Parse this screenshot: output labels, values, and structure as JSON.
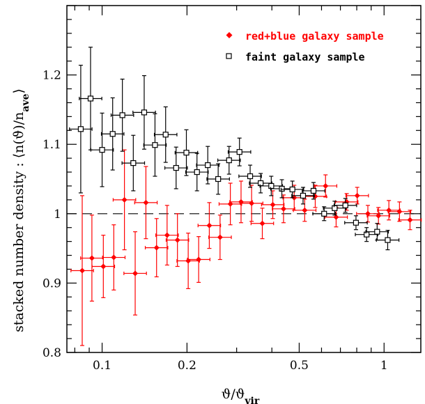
{
  "chart_data": {
    "type": "scatter",
    "xscale": "log",
    "xlim": [
      0.075,
      1.35
    ],
    "ylim": [
      0.8,
      1.3
    ],
    "grid": false,
    "legend_position": "top-right",
    "xlabel": "ϑ/ϑ",
    "xlabel_sub": "vir",
    "ylabel": "stacked number density : ⟨n(ϑ)/n",
    "ylabel_sub": "ave",
    "ylabel_end": "⟩",
    "xticks": [
      0.1,
      0.2,
      0.5,
      1
    ],
    "xtick_labels": [
      "0.1",
      "0.2",
      "0.5",
      "1"
    ],
    "yticks": [
      0.8,
      0.9,
      1.0,
      1.1,
      1.2
    ],
    "ytick_labels": [
      "0.8",
      "0.9",
      "1",
      "1.1",
      "1.2"
    ],
    "reference_line": 1.0,
    "series": [
      {
        "name": "red+blue galaxy sample",
        "color": "#ff0000",
        "marker": "filled-diamond",
        "points": [
          {
            "x": 0.085,
            "y": 0.918,
            "err": 0.108
          },
          {
            "x": 0.092,
            "y": 0.936,
            "err": 0.062
          },
          {
            "x": 0.101,
            "y": 0.924,
            "err": 0.045
          },
          {
            "x": 0.11,
            "y": 0.937,
            "err": 0.047
          },
          {
            "x": 0.12,
            "y": 1.02,
            "err": 0.072
          },
          {
            "x": 0.131,
            "y": 0.914,
            "err": 0.06
          },
          {
            "x": 0.143,
            "y": 1.016,
            "err": 0.052
          },
          {
            "x": 0.156,
            "y": 0.951,
            "err": 0.042
          },
          {
            "x": 0.17,
            "y": 0.969,
            "err": 0.043
          },
          {
            "x": 0.185,
            "y": 0.962,
            "err": 0.038
          },
          {
            "x": 0.202,
            "y": 0.932,
            "err": 0.04
          },
          {
            "x": 0.22,
            "y": 0.934,
            "err": 0.033
          },
          {
            "x": 0.24,
            "y": 0.983,
            "err": 0.033
          },
          {
            "x": 0.262,
            "y": 0.966,
            "err": 0.032
          },
          {
            "x": 0.285,
            "y": 1.014,
            "err": 0.03
          },
          {
            "x": 0.311,
            "y": 1.017,
            "err": 0.03
          },
          {
            "x": 0.339,
            "y": 1.015,
            "err": 0.026
          },
          {
            "x": 0.37,
            "y": 0.986,
            "err": 0.022
          },
          {
            "x": 0.403,
            "y": 1.013,
            "err": 0.02
          },
          {
            "x": 0.44,
            "y": 1.007,
            "err": 0.02
          },
          {
            "x": 0.48,
            "y": 1.023,
            "err": 0.018
          },
          {
            "x": 0.523,
            "y": 1.005,
            "err": 0.016
          },
          {
            "x": 0.57,
            "y": 1.025,
            "err": 0.016
          },
          {
            "x": 0.62,
            "y": 1.04,
            "err": 0.016
          },
          {
            "x": 0.676,
            "y": 0.995,
            "err": 0.014
          },
          {
            "x": 0.737,
            "y": 1.017,
            "err": 0.012
          },
          {
            "x": 0.803,
            "y": 1.026,
            "err": 0.012
          },
          {
            "x": 0.876,
            "y": 1.0,
            "err": 0.012
          },
          {
            "x": 0.955,
            "y": 0.997,
            "err": 0.012
          },
          {
            "x": 1.04,
            "y": 1.005,
            "err": 0.014
          },
          {
            "x": 1.134,
            "y": 1.003,
            "err": 0.014
          },
          {
            "x": 1.236,
            "y": 0.991,
            "err": 0.014
          }
        ]
      },
      {
        "name": "faint galaxy sample",
        "color": "#000000",
        "marker": "open-square",
        "points": [
          {
            "x": 0.084,
            "y": 1.122,
            "err": 0.092
          },
          {
            "x": 0.091,
            "y": 1.166,
            "err": 0.074
          },
          {
            "x": 0.1,
            "y": 1.092,
            "err": 0.053
          },
          {
            "x": 0.109,
            "y": 1.115,
            "err": 0.052
          },
          {
            "x": 0.118,
            "y": 1.142,
            "err": 0.052
          },
          {
            "x": 0.129,
            "y": 1.073,
            "err": 0.04
          },
          {
            "x": 0.141,
            "y": 1.146,
            "err": 0.053
          },
          {
            "x": 0.154,
            "y": 1.099,
            "err": 0.045
          },
          {
            "x": 0.168,
            "y": 1.114,
            "err": 0.04
          },
          {
            "x": 0.183,
            "y": 1.066,
            "err": 0.03
          },
          {
            "x": 0.199,
            "y": 1.088,
            "err": 0.033
          },
          {
            "x": 0.217,
            "y": 1.06,
            "err": 0.027
          },
          {
            "x": 0.237,
            "y": 1.07,
            "err": 0.027
          },
          {
            "x": 0.258,
            "y": 1.05,
            "err": 0.022
          },
          {
            "x": 0.282,
            "y": 1.077,
            "err": 0.02
          },
          {
            "x": 0.307,
            "y": 1.089,
            "err": 0.02
          },
          {
            "x": 0.335,
            "y": 1.054,
            "err": 0.016
          },
          {
            "x": 0.365,
            "y": 1.044,
            "err": 0.014
          },
          {
            "x": 0.398,
            "y": 1.04,
            "err": 0.014
          },
          {
            "x": 0.434,
            "y": 1.036,
            "err": 0.013
          },
          {
            "x": 0.473,
            "y": 1.035,
            "err": 0.012
          },
          {
            "x": 0.516,
            "y": 1.026,
            "err": 0.012
          },
          {
            "x": 0.562,
            "y": 1.033,
            "err": 0.012
          },
          {
            "x": 0.613,
            "y": 1.0,
            "err": 0.01
          },
          {
            "x": 0.668,
            "y": 1.008,
            "err": 0.01
          },
          {
            "x": 0.729,
            "y": 1.012,
            "err": 0.01
          },
          {
            "x": 0.795,
            "y": 0.987,
            "err": 0.01
          },
          {
            "x": 0.867,
            "y": 0.97,
            "err": 0.01
          },
          {
            "x": 0.945,
            "y": 0.974,
            "err": 0.012
          },
          {
            "x": 1.03,
            "y": 0.962,
            "err": 0.014
          }
        ]
      }
    ]
  }
}
